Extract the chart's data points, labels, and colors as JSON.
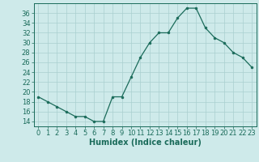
{
  "x": [
    0,
    1,
    2,
    3,
    4,
    5,
    6,
    7,
    8,
    9,
    10,
    11,
    12,
    13,
    14,
    15,
    16,
    17,
    18,
    19,
    20,
    21,
    22,
    23
  ],
  "y": [
    19,
    18,
    17,
    16,
    15,
    15,
    14,
    14,
    19,
    19,
    23,
    27,
    30,
    32,
    32,
    35,
    37,
    37,
    33,
    31,
    30,
    28,
    27,
    25
  ],
  "line_color": "#1a6b5a",
  "marker": "o",
  "marker_size": 2.0,
  "bg_color": "#ceeaea",
  "grid_color": "#aacfcf",
  "xlabel": "Humidex (Indice chaleur)",
  "xlim": [
    -0.5,
    23.5
  ],
  "ylim": [
    13,
    38
  ],
  "yticks": [
    14,
    16,
    18,
    20,
    22,
    24,
    26,
    28,
    30,
    32,
    34,
    36
  ],
  "xticks": [
    0,
    1,
    2,
    3,
    4,
    5,
    6,
    7,
    8,
    9,
    10,
    11,
    12,
    13,
    14,
    15,
    16,
    17,
    18,
    19,
    20,
    21,
    22,
    23
  ],
  "tick_color": "#1a6b5a",
  "axis_color": "#1a6b5a",
  "xlabel_fontsize": 7,
  "tick_fontsize": 6
}
